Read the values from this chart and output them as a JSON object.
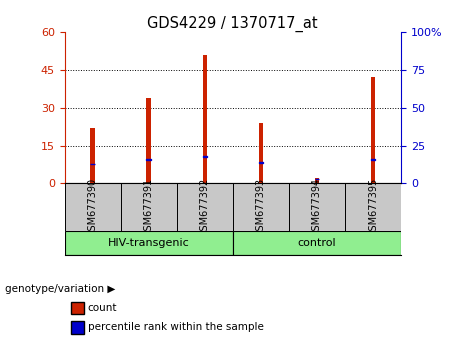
{
  "title": "GDS4229 / 1370717_at",
  "samples": [
    "GSM677390",
    "GSM677391",
    "GSM677392",
    "GSM677393",
    "GSM677394",
    "GSM677395"
  ],
  "count_values": [
    22,
    34,
    51,
    24,
    2,
    42
  ],
  "percentile_values": [
    13,
    16,
    18,
    14,
    3,
    16
  ],
  "ylim_left": [
    0,
    60
  ],
  "ylim_right": [
    0,
    100
  ],
  "yticks_left": [
    0,
    15,
    30,
    45,
    60
  ],
  "yticks_right": [
    0,
    25,
    50,
    75,
    100
  ],
  "bar_color": "#cc2200",
  "percentile_color": "#0000cc",
  "grid_color": "#000000",
  "left_axis_color": "#cc2200",
  "right_axis_color": "#0000cc",
  "background_label": "#c8c8c8",
  "group_color": "#90EE90",
  "bar_width": 0.08,
  "legend_count_label": "count",
  "legend_percentile_label": "percentile rank within the sample",
  "group_info": [
    {
      "start": 0,
      "end": 2,
      "label": "HIV-transgenic"
    },
    {
      "start": 3,
      "end": 5,
      "label": "control"
    }
  ],
  "right_tick_labels": [
    "0",
    "25",
    "50",
    "75",
    "100%"
  ]
}
